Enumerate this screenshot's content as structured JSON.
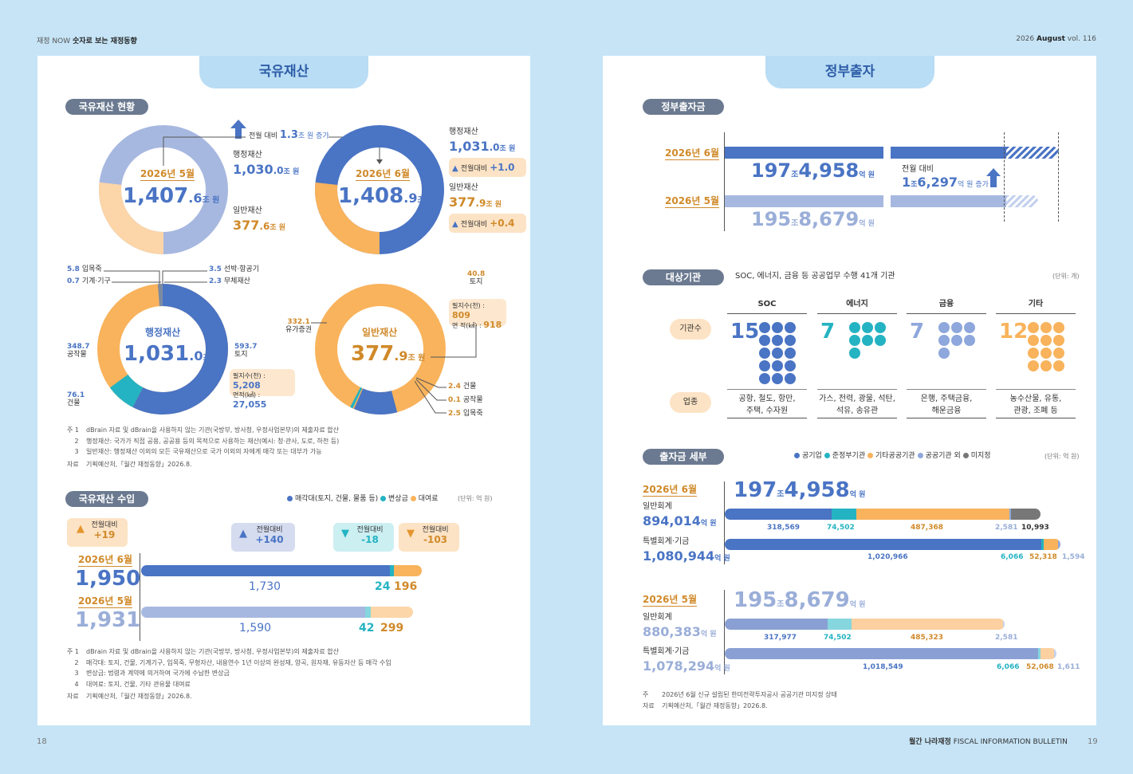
{
  "header": {
    "left_prefix": "재정 NOW",
    "left_bold": "숫자로 보는 재정동향",
    "right_prefix": "2026",
    "right_bold": "August",
    "right_vol": "vol. 116"
  },
  "footer": {
    "left_page": "18",
    "right_bold": "월간 나라재정",
    "right_text": "FISCAL INFORMATION BULLETIN",
    "right_page": "19"
  },
  "left": {
    "tab": "국유재산",
    "status": {
      "pill": "국유재산 현황",
      "arrow_note_a": "전월 대비",
      "arrow_note_num": "1.3",
      "arrow_note_b": "조 원 증가",
      "may": {
        "label": "2026년 5월",
        "big": "1,407",
        "dec": ".6",
        "unit": "조 원",
        "admin_label": "행정재산",
        "admin_big": "1,030",
        "admin_dec": ".0",
        "admin_unit": "조 원",
        "general_label": "일반재산",
        "general_big": "377",
        "general_dec": ".6",
        "general_unit": "조 원"
      },
      "jun": {
        "label": "2026년 6월",
        "big": "1,408",
        "dec": ".9",
        "unit": "조 원",
        "admin_label": "행정재산",
        "admin_big": "1,031",
        "admin_dec": ".0",
        "admin_unit": "조 원",
        "admin_change": "전월대비",
        "admin_change_val": "+1.0",
        "general_label": "일반재산",
        "general_big": "377",
        "general_dec": ".9",
        "general_unit": "조 원",
        "general_change": "전월대비",
        "general_change_val": "+0.4"
      }
    },
    "admin_donut": {
      "title": "행정재산",
      "big": "1,031",
      "dec": ".0",
      "unit": "조 원",
      "l1v": "5.8",
      "l1": "입목죽",
      "l2v": "0.7",
      "l2": "기계·기구",
      "l3v": "3.5",
      "l3": "선박·항공기",
      "l4v": "2.3",
      "l4": "무체재산",
      "l5v": "348.7",
      "l5": "공작물",
      "l6v": "76.1",
      "l6": "건물",
      "l7v": "593.7",
      "l7": "토지",
      "box_a": "필지수(천) : ",
      "box_av": "5,208",
      "box_b": "면적(㎢) : ",
      "box_bv": "27,055"
    },
    "general_donut": {
      "title": "일반재산",
      "big": "377",
      "dec": ".9",
      "unit": "조 원",
      "l1v": "40.8",
      "l1": "토지",
      "box_a": "필지수(천) : ",
      "box_av": "809",
      "box_b": "면    적(㎢) : ",
      "box_bv": "918",
      "l2v": "332.1",
      "l2": "유가증권",
      "l3v": "2.4",
      "l3": "건물",
      "l4v": "0.1",
      "l4": "공작물",
      "l5v": "2.5",
      "l5": "입목죽"
    },
    "notes1": [
      {
        "k": "주 1",
        "v": "dBrain 자료 및 dBrain을 사용하지 않는 기관(국방부, 방사청, 우정사업본부)의 제출자료 합산"
      },
      {
        "k": "2",
        "v": "행정재산: 국가가 직접 공용, 공공용 등의 목적으로 사용하는 재산(예시: 청·관사, 도로, 하천 등)"
      },
      {
        "k": "3",
        "v": "일반재산: 행정재산 이외의 모든 국유재산으로 국가 이외의 자에게 매각 또는 대부가 가능"
      },
      {
        "k": "자료",
        "v": "기획예산처,「월간 재정동향」2026.8."
      }
    ],
    "revenue": {
      "pill": "국유재산 수입",
      "legend": [
        "매각대(토지, 건물, 물품 등)",
        "변상금",
        "대여료"
      ],
      "unit": "(단위: 억 원)",
      "total_change_a": "전월대비",
      "total_change_v": "+19",
      "sale_change_a": "전월대비",
      "sale_change_v": "+140",
      "comp_change_a": "전월대비",
      "comp_change_v": "-18",
      "rent_change_a": "전월대비",
      "rent_change_v": "-103",
      "jun_label": "2026년 6월",
      "jun_total": "1,950",
      "jun_sale": "1,730",
      "jun_comp": "24",
      "jun_rent": "196",
      "may_label": "2026년 5월",
      "may_total": "1,931",
      "may_sale": "1,590",
      "may_comp": "42",
      "may_rent": "299"
    },
    "notes2": [
      {
        "k": "주 1",
        "v": "dBrain 자료 및 dBrain을 사용하지 않는 기관(국방부, 방사청, 우정사업본부)의 제출자료 합산"
      },
      {
        "k": "2",
        "v": "매각대: 토지, 건물, 기계기구, 입목죽, 무형자산, 내용연수 1년 이상의 완성재, 양곡, 원자재, 유동자산 등 매각 수입"
      },
      {
        "k": "3",
        "v": "변상금: 법령과 계약에 의거하여 국가에 수납한 변상금"
      },
      {
        "k": "4",
        "v": "대여료: 토지, 건물, 기타 관유물 대여료"
      },
      {
        "k": "자료",
        "v": "기획예산처,「월간 재정동향」2026.8."
      }
    ]
  },
  "right": {
    "tab": "정부출자",
    "capital": {
      "pill": "정부출자금",
      "jun_label": "2026년 6월",
      "jun_a": "197",
      "jun_b": "조",
      "jun_c": "4,958",
      "jun_d": "억 원",
      "change_a": "전월 대비",
      "change_n": "1",
      "change_b": "조",
      "change_c": "6,297",
      "change_d": "억 원 증가",
      "may_label": "2026년 5월",
      "may_a": "195",
      "may_b": "조",
      "may_c": "8,679",
      "may_d": "억 원"
    },
    "agencies": {
      "pill": "대상기관",
      "desc": "SOC, 에너지, 금융 등 공공업무 수행 41개 기관",
      "unit": "(단위: 개)",
      "row1": "기관수",
      "row2": "업종",
      "cols": [
        {
          "name": "SOC",
          "count": "15",
          "desc1": "공항, 철도, 항만,",
          "desc2": "주택, 수자원",
          "color": "#4a74c4"
        },
        {
          "name": "에너지",
          "count": "7",
          "desc1": "가스, 전력, 광물, 석탄,",
          "desc2": "석유, 송유관",
          "color": "#24b3c2"
        },
        {
          "name": "금융",
          "count": "7",
          "desc1": "은행, 주택금융,",
          "desc2": "해운금융",
          "color": "#8ea7dc"
        },
        {
          "name": "기타",
          "count": "12",
          "desc1": "농수산물, 유통,",
          "desc2": "관광, 조폐 등",
          "color": "#f9b35c"
        }
      ]
    },
    "detail": {
      "pill": "출자금 세부",
      "legend": [
        "공기업",
        "준정부기관",
        "기타공공기관",
        "공공기관 외",
        "미지정"
      ],
      "unit": "(단위: 억 원)",
      "jun": {
        "label": "2026년 6월",
        "total_a": "197",
        "total_b": "조",
        "total_c": "4,958",
        "total_d": "억 원",
        "g_label": "일반회계",
        "g_val": "894,014",
        "g_unit": "억 원",
        "g1": "318,569",
        "g2": "74,502",
        "g3": "487,368",
        "g4": "2,581",
        "g5": "10,993",
        "s_label": "특별회계·기금",
        "s_val": "1,080,944",
        "s_unit": "억 원",
        "s1": "1,020,966",
        "s2": "6,066",
        "s3": "52,318",
        "s4": "1,594"
      },
      "may": {
        "label": "2026년 5월",
        "total_a": "195",
        "total_b": "조",
        "total_c": "8,679",
        "total_d": "억 원",
        "g_label": "일반회계",
        "g_val": "880,383",
        "g_unit": "억 원",
        "g1": "317,977",
        "g2": "74,502",
        "g3": "485,323",
        "g4": "2,581",
        "s_label": "특별회계·기금",
        "s_val": "1,078,294",
        "s_unit": "억 원",
        "s1": "1,018,549",
        "s2": "6,066",
        "s3": "52,068",
        "s4": "1,611"
      }
    },
    "notes": [
      {
        "k": "주",
        "v": "2026년 6월 신규 설립된 한미전략투자공사 공공기관 미지정 상태"
      },
      {
        "k": "자료",
        "v": "기획예산처,「월간 재정동향」2026.8."
      }
    ]
  }
}
